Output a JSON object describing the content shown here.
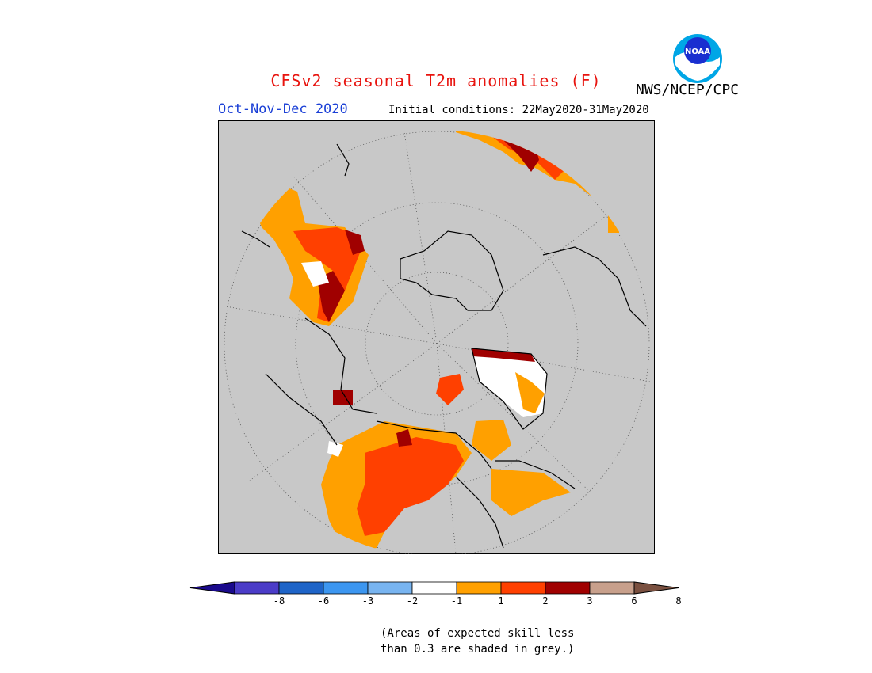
{
  "header": {
    "title": "CFSv2 seasonal T2m anomalies (F)",
    "season": "Oct-Nov-Dec 2020",
    "initial_conditions": "Initial conditions: 22May2020-31May2020",
    "agency": "NWS/NCEP/CPC",
    "logo_text": "NOAA"
  },
  "colors": {
    "title": "#e8140f",
    "season": "#1a3fd6",
    "masked_grey": "#c8c8c8",
    "land_outline": "#000000"
  },
  "colorbar": {
    "tick_labels": [
      "-8",
      "-6",
      "-3",
      "-2",
      "-1",
      "1",
      "2",
      "3",
      "6",
      "8"
    ],
    "segments": [
      {
        "range": "< -8",
        "color": "#1a0a8c"
      },
      {
        "range": "-8 to -6",
        "color": "#4b3cc8"
      },
      {
        "range": "-6 to -3",
        "color": "#1e64c8"
      },
      {
        "range": "-3 to -2",
        "color": "#3c96f0"
      },
      {
        "range": "-2 to -1",
        "color": "#78b4f0"
      },
      {
        "range": "-1 to 1",
        "color": "#ffffff"
      },
      {
        "range": "1 to 2",
        "color": "#ffa000"
      },
      {
        "range": "2 to 3",
        "color": "#ff4000"
      },
      {
        "range": "3 to 6",
        "color": "#a00000"
      },
      {
        "range": "6 to 8",
        "color": "#c8a08c"
      },
      {
        "range": "> 8",
        "color": "#7a5040"
      }
    ]
  },
  "footnote": {
    "line1": "(Areas of expected skill less",
    "line2": "than 0.3 are shaded in grey.)"
  }
}
